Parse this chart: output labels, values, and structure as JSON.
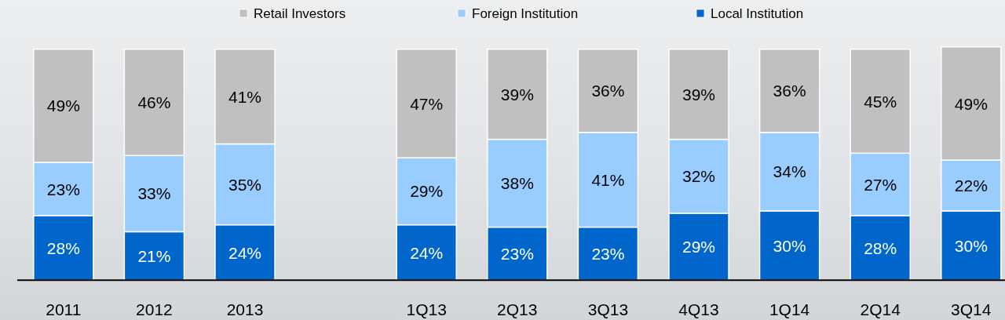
{
  "chart_data": {
    "type": "bar",
    "stacked": true,
    "legend": "top",
    "tick_labels": "x",
    "ylim": [
      0,
      101
    ],
    "categories": [
      "2011",
      "2012",
      "2013",
      null,
      "1Q13",
      "2Q13",
      "3Q13",
      "4Q13",
      "1Q14",
      "2Q14",
      "3Q14"
    ],
    "series": [
      {
        "name": "Local Institution",
        "color": "#0066cc",
        "values": [
          28,
          21,
          24,
          null,
          24,
          23,
          23,
          29,
          30,
          28,
          30
        ],
        "value_labels": [
          "28%",
          "21%",
          "24%",
          null,
          "24%",
          "23%",
          "23%",
          "29%",
          "30%",
          "28%",
          "30%"
        ]
      },
      {
        "name": "Foreign Institution",
        "color": "#99ccff",
        "values": [
          23,
          33,
          35,
          null,
          29,
          38,
          41,
          32,
          34,
          27,
          22
        ],
        "value_labels": [
          "23%",
          "33%",
          "35%",
          null,
          "29%",
          "38%",
          "41%",
          "32%",
          "34%",
          "27%",
          "22%"
        ]
      },
      {
        "name": "Retail Investors",
        "color": "#c0c0c0",
        "values": [
          49,
          46,
          41,
          null,
          47,
          39,
          36,
          39,
          36,
          45,
          49
        ],
        "value_labels": [
          "49%",
          "46%",
          "41%",
          null,
          "47%",
          "39%",
          "36%",
          "39%",
          "36%",
          "45%",
          "49%"
        ]
      }
    ]
  }
}
